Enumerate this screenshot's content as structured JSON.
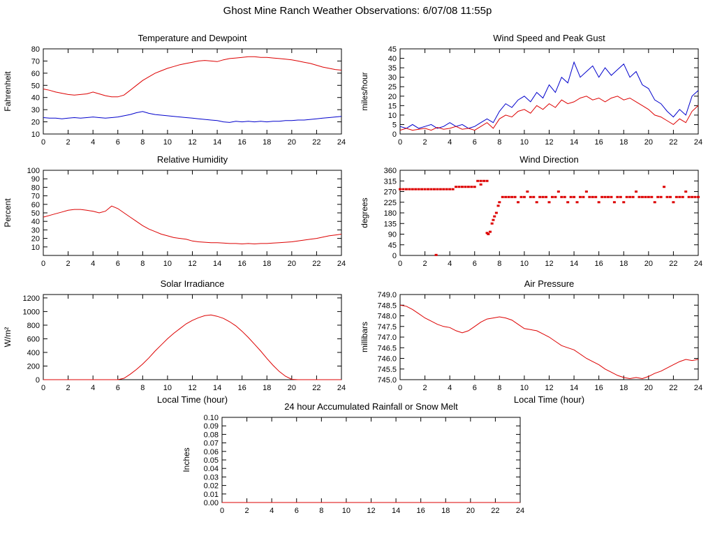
{
  "title": "Ghost Mine Ranch Weather Observations: 6/07/08 11:55p",
  "colors": {
    "axis": "#000000",
    "red_series": "#dd0000",
    "blue_series": "#0000cc"
  },
  "chart_data": [
    {
      "id": "temperature-dewpoint",
      "type": "line",
      "title": "Temperature and Dewpoint",
      "ylabel": "Fahrenheit",
      "xlabel": "",
      "ylim": [
        10,
        80
      ],
      "yticks": [
        10,
        20,
        30,
        40,
        50,
        60,
        70,
        80
      ],
      "ytick_decimals": 0,
      "xlim": [
        0,
        24
      ],
      "xticks": [
        0,
        2,
        4,
        6,
        8,
        10,
        12,
        14,
        16,
        18,
        20,
        22,
        24
      ],
      "series": [
        {
          "name": "temperature",
          "color": "#dd0000",
          "x_start": 0,
          "x_step": 0.5,
          "y": [
            47,
            46,
            44.5,
            43.5,
            42.5,
            42,
            42.5,
            43,
            44.5,
            43,
            41.5,
            40.5,
            40.5,
            42,
            46,
            50,
            54,
            57,
            60,
            62,
            64,
            65.5,
            67,
            68,
            69,
            70,
            70.5,
            70,
            69.5,
            71,
            72,
            72.5,
            73,
            73.5,
            73.5,
            73,
            73,
            72.5,
            72,
            71.5,
            71,
            70,
            69,
            68,
            66.5,
            65,
            64,
            63,
            62.5
          ]
        },
        {
          "name": "dewpoint",
          "color": "#0000cc",
          "x_start": 0,
          "x_step": 0.5,
          "y": [
            23.5,
            23,
            23,
            22.5,
            23,
            23.5,
            23,
            23.5,
            24,
            23.5,
            23,
            23.5,
            24,
            25,
            26,
            27.5,
            28.5,
            27,
            26,
            25.5,
            25,
            24.5,
            24,
            23.5,
            23,
            22.5,
            22,
            21.5,
            21,
            20,
            19.5,
            20.5,
            20,
            20.5,
            20,
            20.5,
            20,
            20.5,
            20.5,
            21,
            21,
            21.5,
            21.5,
            22,
            22.5,
            23,
            23.5,
            24,
            24.5
          ]
        }
      ]
    },
    {
      "id": "wind-speed-gust",
      "type": "line",
      "title": "Wind Speed and Peak Gust",
      "ylabel": "miles/hour",
      "xlabel": "",
      "ylim": [
        0,
        45
      ],
      "yticks": [
        0,
        5,
        10,
        15,
        20,
        25,
        30,
        35,
        40,
        45
      ],
      "ytick_decimals": 0,
      "xlim": [
        0,
        24
      ],
      "xticks": [
        0,
        2,
        4,
        6,
        8,
        10,
        12,
        14,
        16,
        18,
        20,
        22,
        24
      ],
      "series": [
        {
          "name": "peak_gust",
          "color": "#0000cc",
          "x_start": 0,
          "x_step": 0.5,
          "y": [
            4,
            3,
            5,
            3,
            4,
            5,
            3,
            4,
            6,
            4,
            5,
            3,
            4,
            6,
            8,
            6,
            12,
            16,
            14,
            18,
            20,
            17,
            22,
            19,
            26,
            22,
            30,
            27,
            38,
            30,
            33,
            36,
            30,
            35,
            31,
            34,
            37,
            30,
            33,
            26,
            24,
            18,
            16,
            12,
            9,
            13,
            10,
            20,
            23
          ]
        },
        {
          "name": "wind_speed",
          "color": "#dd0000",
          "x_start": 0,
          "x_step": 0.5,
          "y": [
            2,
            3,
            2,
            2.5,
            3,
            2,
            3.5,
            2.5,
            3,
            4,
            2.5,
            3,
            2,
            4,
            6,
            3,
            8,
            10,
            9,
            12,
            13,
            11,
            15,
            13,
            16,
            14,
            18,
            16,
            17,
            19,
            20,
            18,
            19,
            17,
            19,
            20,
            18,
            19,
            17,
            15,
            13,
            10,
            9,
            7,
            5,
            8,
            6,
            12,
            15
          ]
        }
      ]
    },
    {
      "id": "relative-humidity",
      "type": "line",
      "title": "Relative Humidity",
      "ylabel": "Percent",
      "xlabel": "",
      "ylim": [
        0,
        100
      ],
      "yticks": [
        10,
        20,
        30,
        40,
        50,
        60,
        70,
        80,
        90,
        100
      ],
      "ytick_decimals": 0,
      "xlim": [
        0,
        24
      ],
      "xticks": [
        0,
        2,
        4,
        6,
        8,
        10,
        12,
        14,
        16,
        18,
        20,
        22,
        24
      ],
      "series": [
        {
          "name": "relative_humidity",
          "color": "#dd0000",
          "x_start": 0,
          "x_step": 0.5,
          "y": [
            45,
            47,
            49,
            51,
            53,
            54,
            54,
            53,
            52,
            50,
            52,
            58,
            55,
            50,
            45,
            40,
            35,
            31,
            28,
            25,
            23,
            21,
            20,
            19,
            17,
            16,
            15.5,
            15,
            15,
            14.5,
            14,
            14,
            13.5,
            14,
            13.5,
            14,
            14,
            14.5,
            15,
            15.5,
            16,
            17,
            18,
            19,
            20,
            21.5,
            23,
            24,
            25
          ]
        }
      ]
    },
    {
      "id": "wind-direction",
      "type": "scatter",
      "title": "Wind Direction",
      "ylabel": "degrees",
      "xlabel": "",
      "ylim": [
        0,
        360
      ],
      "yticks": [
        0,
        45,
        90,
        135,
        180,
        225,
        270,
        315,
        360
      ],
      "ytick_decimals": 0,
      "xlim": [
        0,
        24
      ],
      "xticks": [
        0,
        2,
        4,
        6,
        8,
        10,
        12,
        14,
        16,
        18,
        20,
        22,
        24
      ],
      "series": [
        {
          "name": "direction_early",
          "color": "#dd0000",
          "x_start": 0,
          "x_step": 0.25,
          "y": [
            280,
            280,
            280,
            280,
            280,
            280,
            280,
            280,
            280,
            280,
            280,
            280,
            280,
            280,
            280,
            280,
            280,
            280
          ]
        },
        {
          "name": "direction_mid_morning",
          "color": "#dd0000",
          "x_start": 4.5,
          "x_step": 0.25,
          "y": [
            290,
            290,
            290,
            290,
            290,
            290,
            290
          ]
        },
        {
          "name": "direction_pre_shift",
          "color": "#dd0000",
          "x_start": 6.25,
          "x_step": 0.25,
          "y": [
            315,
            315,
            315,
            315
          ]
        },
        {
          "name": "direction_transition",
          "color": "#dd0000",
          "points": [
            [
              2.9,
              2
            ],
            [
              6.5,
              300
            ],
            [
              7.0,
              95
            ],
            [
              7.1,
              90
            ],
            [
              7.25,
              100
            ],
            [
              7.4,
              135
            ],
            [
              7.5,
              150
            ],
            [
              7.6,
              165
            ],
            [
              7.75,
              180
            ],
            [
              7.9,
              210
            ],
            [
              8.0,
              225
            ]
          ]
        },
        {
          "name": "direction_afternoon",
          "color": "#dd0000",
          "x_start": 8.25,
          "x_step": 0.25,
          "y": [
            247,
            247,
            247,
            247,
            247,
            225,
            247,
            247,
            270,
            247,
            247,
            225,
            247,
            247,
            247,
            225,
            247,
            247,
            270,
            247,
            247,
            225,
            247,
            247,
            225,
            247,
            247,
            270,
            247,
            247,
            247,
            225,
            247,
            247,
            247,
            247,
            225,
            247,
            247,
            225,
            247,
            247,
            247,
            270,
            247,
            247,
            247,
            247,
            247,
            225,
            247,
            247,
            290,
            247,
            247,
            225,
            247,
            247,
            247,
            270,
            247,
            247,
            247,
            247
          ]
        }
      ]
    },
    {
      "id": "solar-irradiance",
      "type": "line",
      "title": "Solar Irradiance",
      "ylabel": "W/m²",
      "xlabel": "Local Time (hour)",
      "ylim": [
        0,
        1250
      ],
      "yticks": [
        0,
        200,
        400,
        600,
        800,
        1000,
        1200
      ],
      "ytick_decimals": 0,
      "xlim": [
        0,
        24
      ],
      "xticks": [
        0,
        2,
        4,
        6,
        8,
        10,
        12,
        14,
        16,
        18,
        20,
        22,
        24
      ],
      "series": [
        {
          "name": "solar_irradiance",
          "color": "#dd0000",
          "x_start": 0,
          "x_step": 0.5,
          "y": [
            0,
            0,
            0,
            0,
            0,
            0,
            0,
            0,
            0,
            0,
            0,
            0,
            0,
            20,
            80,
            150,
            230,
            320,
            420,
            510,
            600,
            680,
            750,
            820,
            870,
            910,
            940,
            950,
            930,
            900,
            850,
            790,
            710,
            620,
            520,
            420,
            310,
            210,
            120,
            50,
            5,
            0,
            0,
            0,
            0,
            0,
            0,
            0,
            0
          ]
        }
      ]
    },
    {
      "id": "air-pressure",
      "type": "line",
      "title": "Air Pressure",
      "ylabel": "millibars",
      "xlabel": "Local Time (hour)",
      "ylim": [
        745.0,
        749.0
      ],
      "yticks": [
        745.0,
        745.5,
        746.0,
        746.5,
        747.0,
        747.5,
        748.0,
        748.5,
        749.0
      ],
      "ytick_decimals": 1,
      "xlim": [
        0,
        24
      ],
      "xticks": [
        0,
        2,
        4,
        6,
        8,
        10,
        12,
        14,
        16,
        18,
        20,
        22,
        24
      ],
      "series": [
        {
          "name": "air_pressure",
          "color": "#dd0000",
          "x_start": 0,
          "x_step": 0.5,
          "y": [
            748.5,
            748.45,
            748.3,
            748.1,
            747.9,
            747.75,
            747.6,
            747.5,
            747.45,
            747.3,
            747.2,
            747.3,
            747.5,
            747.7,
            747.85,
            747.9,
            747.95,
            747.9,
            747.8,
            747.6,
            747.4,
            747.35,
            747.3,
            747.15,
            747.0,
            746.8,
            746.6,
            746.5,
            746.4,
            746.2,
            746.0,
            745.85,
            745.7,
            745.5,
            745.35,
            745.2,
            745.1,
            745.05,
            745.1,
            745.05,
            745.15,
            745.3,
            745.4,
            745.55,
            745.7,
            745.85,
            745.95,
            745.9,
            745.95
          ]
        }
      ]
    },
    {
      "id": "rainfall",
      "type": "line",
      "title": "24 hour Accumulated Rainfall or Snow Melt",
      "ylabel": "Inches",
      "xlabel": "",
      "ylim": [
        0,
        0.1
      ],
      "yticks": [
        0.0,
        0.01,
        0.02,
        0.03,
        0.04,
        0.05,
        0.06,
        0.07,
        0.08,
        0.09,
        0.1
      ],
      "ytick_decimals": 2,
      "xlim": [
        0,
        24
      ],
      "xticks": [
        0,
        2,
        4,
        6,
        8,
        10,
        12,
        14,
        16,
        18,
        20,
        22,
        24
      ],
      "series": [
        {
          "name": "accumulated_rainfall",
          "color": "#dd0000",
          "x_start": 0,
          "x_step": 24,
          "y": [
            0,
            0
          ]
        }
      ]
    }
  ]
}
